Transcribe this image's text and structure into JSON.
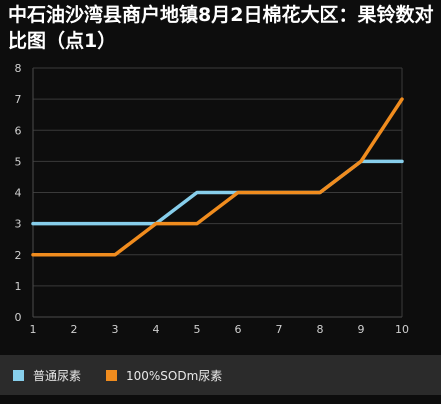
{
  "chart_data": {
    "type": "line",
    "title": "中石油沙湾县商户地镇8月2日棉花大区：果铃数对比图（点1）",
    "x": [
      1,
      2,
      3,
      4,
      5,
      6,
      7,
      8,
      9,
      10
    ],
    "series": [
      {
        "name": "普通尿素",
        "values": [
          3,
          3,
          3,
          3,
          4,
          4,
          4,
          4,
          5,
          5
        ],
        "color": "#87ceeb"
      },
      {
        "name": "100%SODm尿素",
        "values": [
          2,
          2,
          2,
          3,
          3,
          4,
          4,
          4,
          5,
          7
        ],
        "color": "#f08c1e"
      }
    ],
    "xlim": [
      1,
      10
    ],
    "ylim": [
      0,
      8
    ],
    "yticks": [
      0,
      1,
      2,
      3,
      4,
      5,
      6,
      7,
      8
    ],
    "xticks": [
      1,
      2,
      3,
      4,
      5,
      6,
      7,
      8,
      9,
      10
    ],
    "grid": true,
    "legend": "bottom-left"
  }
}
